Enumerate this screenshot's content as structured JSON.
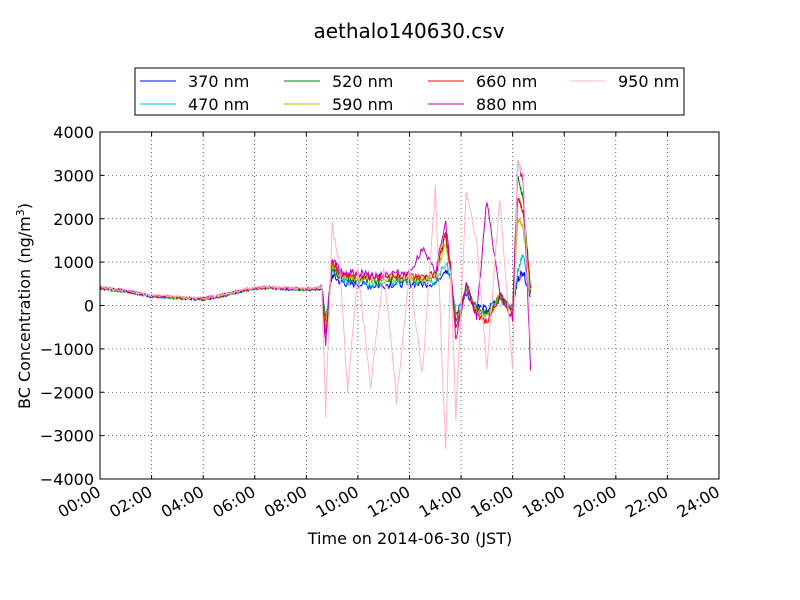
{
  "chart_data": {
    "type": "line",
    "title": "aethalo140630.csv",
    "xlabel": "Time on 2014-06-30 (JST)",
    "ylabel_main": "BC Concentration (ng/m",
    "ylabel_sup": "3",
    "ylabel_close": ")",
    "xlim_hours": [
      0,
      24
    ],
    "ylim": [
      -4000,
      4000
    ],
    "x_ticks": [
      "00:00",
      "02:00",
      "04:00",
      "06:00",
      "08:00",
      "10:00",
      "12:00",
      "14:00",
      "16:00",
      "18:00",
      "20:00",
      "22:00",
      "24:00"
    ],
    "y_ticks": [
      "4000",
      "3000",
      "2000",
      "1000",
      "0",
      "−1000",
      "−2000",
      "−3000",
      "−4000"
    ],
    "grid": true,
    "grid_style": "dotted",
    "legend_position": "top, above plot, 4 columns",
    "data_ends_hour": 16.9,
    "series": [
      {
        "name": "370 nm",
        "color": "#0000ff",
        "x": [
          0,
          0.5,
          1,
          1.5,
          2,
          2.5,
          3,
          3.5,
          4,
          4.5,
          5,
          5.5,
          6,
          6.5,
          7,
          7.5,
          8,
          8.5,
          8.6,
          8.75,
          9.0,
          9.3,
          9.6,
          10,
          10.5,
          11,
          11.5,
          12,
          12.5,
          13,
          13.4,
          13.6,
          13.8,
          14.2,
          14.6,
          15,
          15.5,
          16,
          16.2,
          16.4,
          16.7
        ],
        "y": [
          400,
          350,
          320,
          260,
          200,
          190,
          170,
          150,
          140,
          190,
          250,
          330,
          380,
          400,
          380,
          370,
          360,
          380,
          400,
          -300,
          700,
          550,
          500,
          500,
          450,
          480,
          500,
          510,
          500,
          520,
          850,
          600,
          -200,
          300,
          0,
          -100,
          150,
          0,
          600,
          800,
          200
        ]
      },
      {
        "name": "470 nm",
        "color": "#00bfbf",
        "x": [
          0,
          0.5,
          1,
          1.5,
          2,
          2.5,
          3,
          3.5,
          4,
          4.5,
          5,
          5.5,
          6,
          6.5,
          7,
          7.5,
          8,
          8.5,
          8.6,
          8.75,
          9.0,
          9.3,
          9.6,
          10,
          10.5,
          11,
          11.5,
          12,
          12.5,
          13,
          13.4,
          13.6,
          13.8,
          14.2,
          14.6,
          15,
          15.5,
          16,
          16.2,
          16.4,
          16.7
        ],
        "y": [
          410,
          355,
          325,
          265,
          205,
          195,
          175,
          155,
          145,
          195,
          255,
          335,
          385,
          405,
          385,
          375,
          365,
          385,
          410,
          -350,
          800,
          600,
          550,
          550,
          500,
          520,
          550,
          560,
          540,
          560,
          1000,
          650,
          -300,
          350,
          -50,
          -250,
          150,
          -100,
          800,
          1200,
          250
        ]
      },
      {
        "name": "520 nm",
        "color": "#007f00",
        "x": [
          0,
          0.5,
          1,
          1.5,
          2,
          2.5,
          3,
          3.5,
          4,
          4.5,
          5,
          5.5,
          6,
          6.5,
          7,
          7.5,
          8,
          8.5,
          8.6,
          8.75,
          9.0,
          9.3,
          9.6,
          10,
          10.5,
          11,
          11.5,
          12,
          12.5,
          13,
          13.4,
          13.6,
          13.8,
          14.2,
          14.6,
          15,
          15.5,
          16,
          16.2,
          16.4,
          16.7
        ],
        "y": [
          420,
          360,
          330,
          270,
          210,
          200,
          180,
          160,
          150,
          200,
          260,
          340,
          390,
          410,
          390,
          380,
          370,
          390,
          420,
          -450,
          900,
          650,
          600,
          600,
          560,
          580,
          600,
          620,
          600,
          620,
          1650,
          700,
          -400,
          400,
          -100,
          -200,
          200,
          -100,
          3000,
          2500,
          300
        ]
      },
      {
        "name": "590 nm",
        "color": "#bfbf00",
        "x": [
          0,
          0.5,
          1,
          1.5,
          2,
          2.5,
          3,
          3.5,
          4,
          4.5,
          5,
          5.5,
          6,
          6.5,
          7,
          7.5,
          8,
          8.5,
          8.6,
          8.75,
          9.0,
          9.3,
          9.6,
          10,
          10.5,
          11,
          11.5,
          12,
          12.5,
          13,
          13.4,
          13.6,
          13.8,
          14.2,
          14.6,
          15,
          15.5,
          16,
          16.2,
          16.4,
          16.7
        ],
        "y": [
          425,
          365,
          335,
          275,
          215,
          205,
          185,
          165,
          155,
          205,
          265,
          345,
          395,
          415,
          395,
          385,
          375,
          395,
          425,
          -550,
          950,
          700,
          650,
          650,
          600,
          620,
          640,
          660,
          640,
          660,
          1400,
          750,
          -500,
          450,
          -150,
          -300,
          200,
          -150,
          2000,
          1800,
          350
        ]
      },
      {
        "name": "660 nm",
        "color": "#ff0000",
        "x": [
          0,
          0.5,
          1,
          1.5,
          2,
          2.5,
          3,
          3.5,
          4,
          4.5,
          5,
          5.5,
          6,
          6.5,
          7,
          7.5,
          8,
          8.5,
          8.6,
          8.75,
          9.0,
          9.3,
          9.6,
          10,
          10.5,
          11,
          11.5,
          12,
          12.5,
          13,
          13.4,
          13.6,
          13.8,
          14.2,
          14.6,
          15,
          15.5,
          16,
          16.2,
          16.4,
          16.7
        ],
        "y": [
          430,
          370,
          340,
          280,
          220,
          210,
          190,
          170,
          160,
          210,
          270,
          350,
          400,
          420,
          400,
          390,
          380,
          400,
          430,
          -700,
          1000,
          750,
          700,
          700,
          650,
          660,
          680,
          700,
          680,
          700,
          1650,
          800,
          -600,
          450,
          -200,
          -400,
          250,
          -200,
          2500,
          2200,
          400
        ]
      },
      {
        "name": "880 nm",
        "color": "#bf00bf",
        "x": [
          0,
          0.5,
          1,
          1.5,
          2,
          2.5,
          3,
          3.5,
          4,
          4.5,
          5,
          5.5,
          6,
          6.5,
          7,
          7.5,
          8,
          8.5,
          8.6,
          8.75,
          9.0,
          9.3,
          9.6,
          10,
          10.5,
          11,
          11.5,
          12,
          12.5,
          13,
          13.4,
          13.6,
          13.8,
          14.2,
          14.6,
          15,
          15.5,
          16,
          16.2,
          16.4,
          16.7
        ],
        "y": [
          435,
          375,
          345,
          285,
          225,
          215,
          195,
          175,
          165,
          215,
          275,
          355,
          405,
          425,
          405,
          395,
          385,
          405,
          435,
          -900,
          1100,
          800,
          750,
          750,
          700,
          720,
          740,
          760,
          1300,
          760,
          1900,
          850,
          -800,
          500,
          -250,
          2450,
          300,
          -300,
          3300,
          2900,
          -1500
        ]
      },
      {
        "name": "950 nm",
        "color": "#ffb6c1",
        "x": [
          0,
          0.5,
          1,
          1.5,
          2,
          2.5,
          3,
          3.5,
          4,
          4.5,
          5,
          5.5,
          6,
          6.5,
          7,
          7.5,
          8,
          8.5,
          8.6,
          8.75,
          9.0,
          9.3,
          9.6,
          10,
          10.5,
          11,
          11.5,
          12,
          12.5,
          13,
          13.4,
          13.6,
          13.8,
          14.2,
          14.6,
          15,
          15.5,
          16,
          16.2,
          16.4,
          16.7
        ],
        "y": [
          440,
          380,
          350,
          290,
          230,
          220,
          200,
          180,
          170,
          220,
          280,
          360,
          410,
          430,
          410,
          400,
          390,
          410,
          440,
          -2500,
          1850,
          900,
          -2000,
          800,
          -1900,
          850,
          -2200,
          800,
          -1600,
          2700,
          -3300,
          900,
          -2600,
          2600,
          1500,
          -1500,
          2500,
          -1500,
          3300,
          3000,
          -1000
        ]
      }
    ]
  }
}
